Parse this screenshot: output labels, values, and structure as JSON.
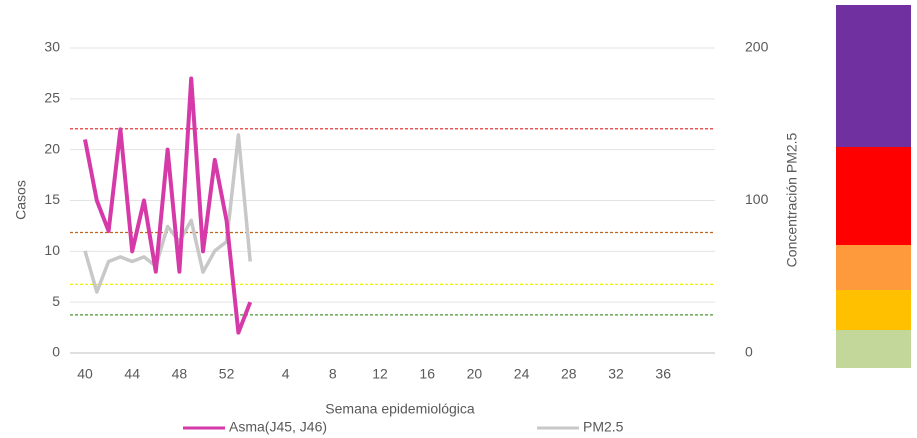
{
  "chart_data": {
    "type": "line",
    "xlabel": "Semana epidemiológica",
    "ylabel": "Casos",
    "y2label": "Concentración PM2.5",
    "categories": [
      "40",
      null,
      null,
      null,
      "44",
      null,
      null,
      null,
      "48",
      null,
      null,
      null,
      "52",
      null,
      null,
      null,
      null,
      "4",
      null,
      null,
      null,
      "8",
      null,
      null,
      null,
      "12",
      null,
      null,
      null,
      "16",
      null,
      null,
      null,
      "20",
      null,
      null,
      null,
      "24",
      null,
      null,
      null,
      "28",
      null,
      null,
      null,
      "32",
      null,
      null,
      null,
      "36",
      null,
      null,
      null
    ],
    "ylim": [
      0,
      30
    ],
    "yticks": [
      0,
      5,
      10,
      15,
      20,
      25,
      30
    ],
    "y2lim": [
      0,
      200
    ],
    "y2ticks": [
      0,
      100,
      200
    ],
    "grid": true,
    "series": [
      {
        "name": "Asma(J45, J46)",
        "color": "#d63aa8",
        "axis": "y",
        "values": [
          21,
          15,
          12,
          22,
          10,
          15,
          8,
          20,
          8,
          27,
          10,
          19,
          13,
          2,
          5,
          null,
          null,
          null,
          null,
          null,
          null,
          null,
          null,
          null,
          null,
          null,
          null,
          null,
          null,
          null,
          null,
          null,
          null,
          null,
          null,
          null,
          null,
          null,
          null,
          null,
          null,
          null,
          null,
          null,
          null,
          null,
          null,
          null,
          null,
          null,
          null,
          null,
          null
        ]
      },
      {
        "name": "PM2.5",
        "color": "#c8c8c8",
        "axis": "y2",
        "values": [
          67,
          40,
          60,
          63,
          60,
          63,
          57,
          83,
          73,
          87,
          53,
          67,
          73,
          143,
          60,
          null,
          null,
          null,
          null,
          null,
          null,
          null,
          null,
          null,
          null,
          null,
          null,
          null,
          null,
          null,
          null,
          null,
          null,
          null,
          null,
          null,
          null,
          null,
          null,
          null,
          null,
          null,
          null,
          null,
          null,
          null,
          null,
          null,
          null,
          null,
          null,
          null,
          null
        ]
      }
    ],
    "reference_lines": [
      {
        "value": 147,
        "color": "#e02020",
        "axis": "y2"
      },
      {
        "value": 79,
        "color": "#c0651a",
        "axis": "y2"
      },
      {
        "value": 45,
        "color": "#f0f000",
        "axis": "y2"
      },
      {
        "value": 25,
        "color": "#4a9a30",
        "axis": "y2"
      }
    ]
  }
}
